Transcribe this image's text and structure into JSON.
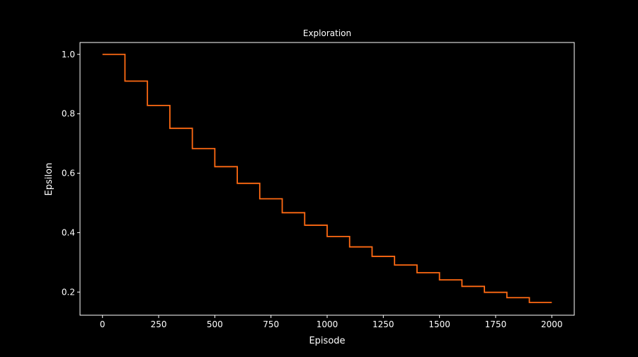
{
  "chart_data": {
    "type": "line",
    "title": "Exploration",
    "xlabel": "Episode",
    "ylabel": "Epsilon",
    "xlim": [
      -100,
      2100
    ],
    "ylim": [
      0.122,
      1.04
    ],
    "grid": false,
    "legend": "none",
    "step": "post",
    "xticks": [
      0,
      250,
      500,
      750,
      1000,
      1250,
      1500,
      1750,
      2000
    ],
    "yticks": [
      0.2,
      0.4,
      0.6,
      0.8,
      1.0
    ],
    "yticks_labels": [
      "0.2",
      "0.4",
      "0.6",
      "0.8",
      "1.0"
    ],
    "series": [
      {
        "color": "#ff6a13",
        "x": [
          0,
          100,
          200,
          300,
          400,
          500,
          600,
          700,
          800,
          900,
          1000,
          1100,
          1200,
          1300,
          1400,
          1500,
          1600,
          1700,
          1800,
          1900,
          2000
        ],
        "y": [
          1.0,
          0.91,
          0.828,
          0.751,
          0.683,
          0.622,
          0.566,
          0.514,
          0.467,
          0.425,
          0.387,
          0.352,
          0.32,
          0.291,
          0.265,
          0.241,
          0.219,
          0.199,
          0.181,
          0.165,
          0.165
        ]
      }
    ],
    "colors": {
      "background": "#000000",
      "axes": "#ffffff",
      "text": "#ffffff"
    }
  }
}
